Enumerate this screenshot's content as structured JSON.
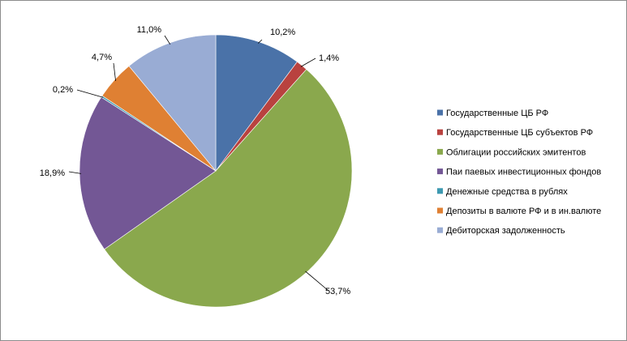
{
  "chart_data": {
    "type": "pie",
    "title": "",
    "start_angle_deg": 0,
    "direction": "clockwise",
    "legend_position": "right",
    "slices": [
      {
        "label": "Государственные ЦБ РФ",
        "value": 10.2,
        "value_label": "10,2%",
        "color": "#4a72a8"
      },
      {
        "label": "Государственные ЦБ субъектов РФ",
        "value": 1.4,
        "value_label": "1,4%",
        "color": "#b9423f"
      },
      {
        "label": "Облигации российских эмитентов",
        "value": 53.7,
        "value_label": "53,7%",
        "color": "#8aa84d"
      },
      {
        "label": "Паи паевых инвестиционных фондов",
        "value": 18.9,
        "value_label": "18,9%",
        "color": "#735795"
      },
      {
        "label": "Денежные средства в рублях",
        "value": 0.2,
        "value_label": "0,2%",
        "color": "#3d99b1"
      },
      {
        "label": "Депозиты в валюте РФ и в ин.валюте",
        "value": 4.7,
        "value_label": "4,7%",
        "color": "#df8033"
      },
      {
        "label": "Дебиторская задолженность",
        "value": 11.0,
        "value_label": "11,0%",
        "color": "#99acd4"
      }
    ]
  }
}
